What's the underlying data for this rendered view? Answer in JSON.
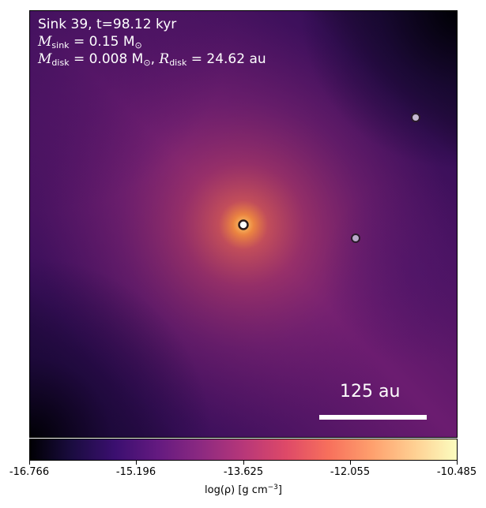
{
  "annotation": {
    "line1": "Sink 39, t=98.12 kyr",
    "m_sink_label": "M",
    "m_sink_sub": "sink",
    "m_sink_value": " = 0.15 M",
    "sun_symbol": "⊙",
    "m_disk_label": "M",
    "m_disk_sub": "disk",
    "m_disk_value": " = 0.008 M",
    "r_disk_sep": ", ",
    "r_disk_label": "R",
    "r_disk_sub": "disk",
    "r_disk_value": " = 24.62 au"
  },
  "scale_bar": {
    "label": "125 au"
  },
  "colorbar": {
    "colormap": "inferno",
    "ticks": [
      "-16.766",
      "-15.196",
      "-13.625",
      "-12.055",
      "-10.485"
    ],
    "label_main": "log(ρ) [g cm",
    "label_exp": "−3",
    "label_end": "]"
  },
  "sinks": [
    {
      "name": "central-sink",
      "fill": "#ffffff",
      "stroke": "#2a1a1a"
    },
    {
      "name": "sink-b",
      "fill": "#b9a9c9",
      "stroke": "#2a1a2a"
    },
    {
      "name": "sink-c",
      "fill": "#c7b9d2",
      "stroke": "#2a1a2a"
    }
  ]
}
